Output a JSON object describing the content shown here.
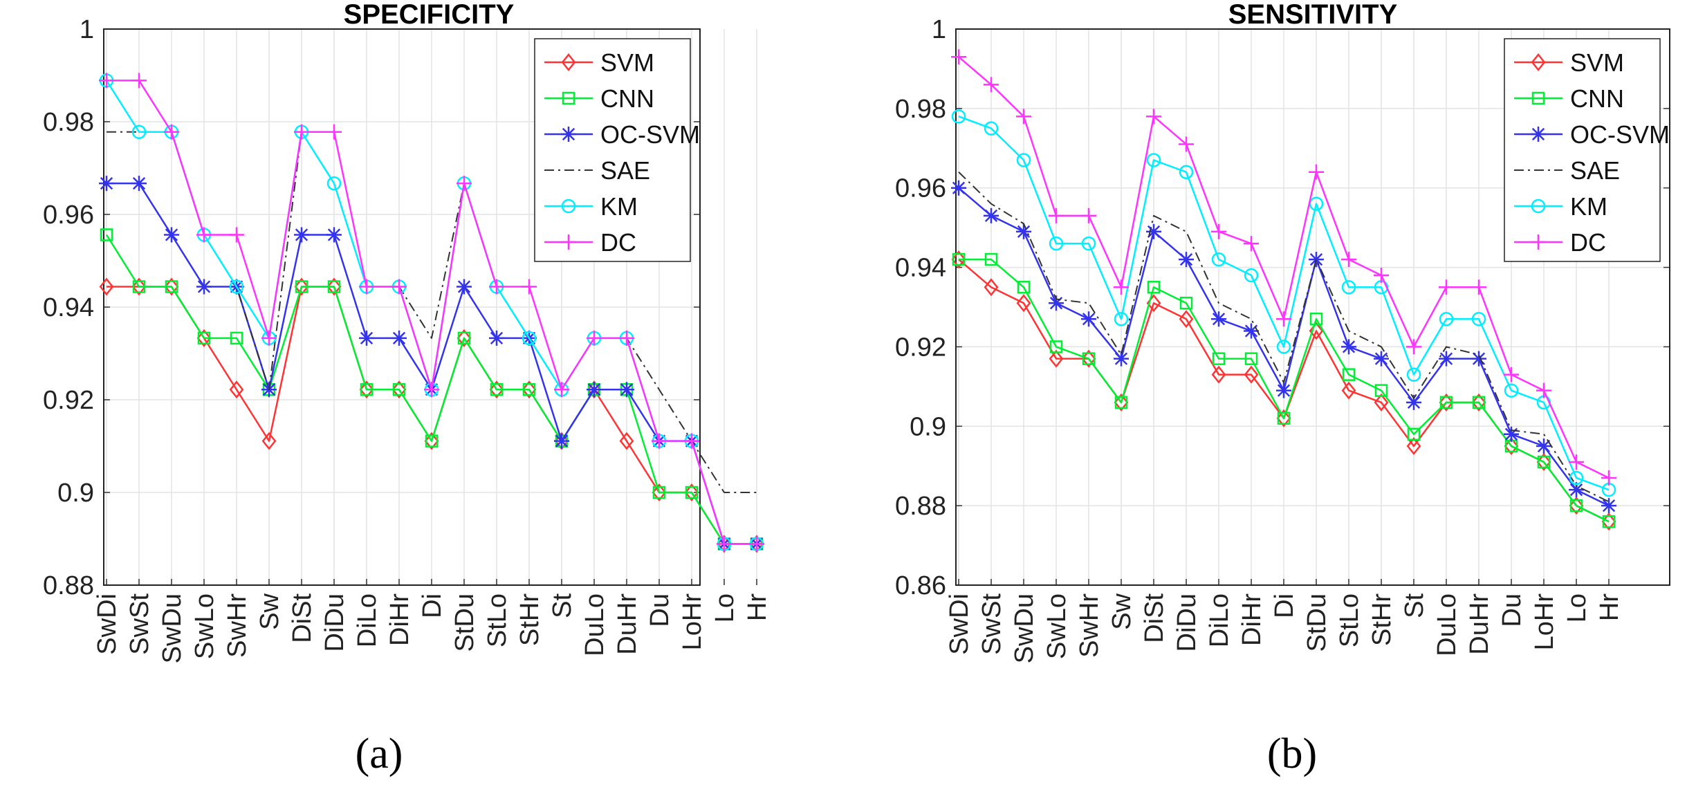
{
  "figure": {
    "panel_labels": [
      "(a)",
      "(b)"
    ]
  },
  "colors": {
    "SVM": "#ff3333",
    "CNN": "#00ee33",
    "OC-SVM": "#3333ee",
    "SAE": "#333333",
    "KM": "#00eeff",
    "DC": "#ff33ff"
  },
  "chart_data": [
    {
      "type": "line",
      "title": "SPECIFICITY",
      "panel_label": "(a)",
      "xlabel": "",
      "ylabel": "",
      "ylim": [
        0.88,
        1.0
      ],
      "yticks": [
        0.88,
        0.9,
        0.92,
        0.94,
        0.96,
        0.98,
        1
      ],
      "ytick_labels": [
        "0.88",
        "0.9",
        "0.92",
        "0.94",
        "0.96",
        "0.98",
        "1"
      ],
      "grid": true,
      "legend_position": "top-right",
      "categories": [
        "SwDi",
        "SwSt",
        "SwDu",
        "SwLo",
        "SwHr",
        "Sw",
        "DiSt",
        "DiDu",
        "DiLo",
        "DiHr",
        "Di",
        "StDu",
        "StLo",
        "StHr",
        "St",
        "DuLo",
        "DuHr",
        "Du",
        "LoHr",
        "Lo",
        "Hr"
      ],
      "series": [
        {
          "name": "SVM",
          "marker": "diamond",
          "values": [
            0.9444,
            0.9444,
            0.9444,
            0.9333,
            0.9222,
            0.9111,
            0.9444,
            0.9444,
            0.9222,
            0.9222,
            0.9111,
            0.9333,
            0.9222,
            0.9222,
            0.9111,
            0.9222,
            0.9111,
            0.9,
            0.9,
            0.8889,
            0.8889
          ]
        },
        {
          "name": "CNN",
          "marker": "square",
          "values": [
            0.9556,
            0.9444,
            0.9444,
            0.9333,
            0.9333,
            0.9222,
            0.9444,
            0.9444,
            0.9222,
            0.9222,
            0.9111,
            0.9333,
            0.9222,
            0.9222,
            0.9111,
            0.9222,
            0.9222,
            0.9,
            0.9,
            0.8889,
            0.8889
          ]
        },
        {
          "name": "OC-SVM",
          "marker": "star",
          "values": [
            0.9667,
            0.9667,
            0.9556,
            0.9444,
            0.9444,
            0.9222,
            0.9556,
            0.9556,
            0.9333,
            0.9333,
            0.9222,
            0.9444,
            0.9333,
            0.9333,
            0.9111,
            0.9222,
            0.9222,
            0.9111,
            0.9111,
            0.8889,
            0.8889
          ]
        },
        {
          "name": "SAE",
          "marker": "none",
          "values": [
            0.9778,
            0.9778,
            0.9778,
            0.9556,
            0.9444,
            0.9222,
            0.9778,
            0.9667,
            0.9444,
            0.9444,
            0.9333,
            0.9667,
            0.9444,
            0.9333,
            0.9222,
            0.9333,
            0.9333,
            0.9222,
            0.9111,
            0.9,
            0.9
          ]
        },
        {
          "name": "KM",
          "marker": "circle",
          "values": [
            0.9889,
            0.9778,
            0.9778,
            0.9556,
            0.9444,
            0.9333,
            0.9778,
            0.9667,
            0.9444,
            0.9444,
            0.9222,
            0.9667,
            0.9444,
            0.9333,
            0.9222,
            0.9333,
            0.9333,
            0.9111,
            0.9111,
            0.8889,
            0.8889
          ]
        },
        {
          "name": "DC",
          "marker": "plus",
          "values": [
            0.9889,
            0.9889,
            0.9778,
            0.9556,
            0.9556,
            0.9333,
            0.9778,
            0.9778,
            0.9444,
            0.9444,
            0.9222,
            0.9667,
            0.9444,
            0.9444,
            0.9222,
            0.9333,
            0.9333,
            0.9111,
            0.9111,
            0.8889,
            0.8889
          ]
        }
      ]
    },
    {
      "type": "line",
      "title": "SENSITIVITY",
      "panel_label": "(b)",
      "xlabel": "",
      "ylabel": "",
      "ylim": [
        0.86,
        1.0
      ],
      "yticks": [
        0.86,
        0.88,
        0.9,
        0.92,
        0.94,
        0.96,
        0.98,
        1
      ],
      "ytick_labels": [
        "0.86",
        "0.88",
        "0.9",
        "0.92",
        "0.94",
        "0.96",
        "0.98",
        "1"
      ],
      "grid": true,
      "legend_position": "top-right",
      "categories": [
        "SwDi",
        "SwSt",
        "SwDu",
        "SwLo",
        "SwHr",
        "Sw",
        "DiSt",
        "DiDu",
        "DiLo",
        "DiHr",
        "Di",
        "StDu",
        "StLo",
        "StHr",
        "St",
        "DuLo",
        "DuHr",
        "Du",
        "LoHr",
        "Lo",
        "Hr"
      ],
      "series": [
        {
          "name": "SVM",
          "marker": "diamond",
          "values": [
            0.942,
            0.935,
            0.931,
            0.917,
            0.917,
            0.906,
            0.931,
            0.927,
            0.913,
            0.913,
            0.902,
            0.924,
            0.909,
            0.906,
            0.895,
            0.906,
            0.906,
            0.895,
            0.891,
            0.88,
            0.876
          ]
        },
        {
          "name": "CNN",
          "marker": "square",
          "values": [
            0.942,
            0.942,
            0.935,
            0.92,
            0.917,
            0.906,
            0.935,
            0.931,
            0.917,
            0.917,
            0.902,
            0.927,
            0.913,
            0.909,
            0.898,
            0.906,
            0.906,
            0.895,
            0.891,
            0.88,
            0.876
          ]
        },
        {
          "name": "OC-SVM",
          "marker": "star",
          "values": [
            0.96,
            0.953,
            0.949,
            0.931,
            0.927,
            0.917,
            0.949,
            0.942,
            0.927,
            0.924,
            0.909,
            0.942,
            0.92,
            0.917,
            0.906,
            0.917,
            0.917,
            0.898,
            0.895,
            0.884,
            0.88
          ]
        },
        {
          "name": "SAE",
          "marker": "none",
          "values": [
            0.964,
            0.956,
            0.951,
            0.932,
            0.931,
            0.918,
            0.953,
            0.949,
            0.931,
            0.927,
            0.911,
            0.942,
            0.924,
            0.92,
            0.907,
            0.92,
            0.918,
            0.899,
            0.898,
            0.885,
            0.881
          ]
        },
        {
          "name": "KM",
          "marker": "circle",
          "values": [
            0.978,
            0.975,
            0.967,
            0.946,
            0.946,
            0.927,
            0.967,
            0.964,
            0.942,
            0.938,
            0.92,
            0.956,
            0.935,
            0.935,
            0.913,
            0.927,
            0.927,
            0.909,
            0.906,
            0.887,
            0.884
          ]
        },
        {
          "name": "DC",
          "marker": "plus",
          "values": [
            0.993,
            0.986,
            0.978,
            0.953,
            0.953,
            0.935,
            0.978,
            0.971,
            0.949,
            0.946,
            0.927,
            0.964,
            0.942,
            0.938,
            0.92,
            0.935,
            0.935,
            0.913,
            0.909,
            0.891,
            0.887
          ]
        }
      ]
    }
  ]
}
